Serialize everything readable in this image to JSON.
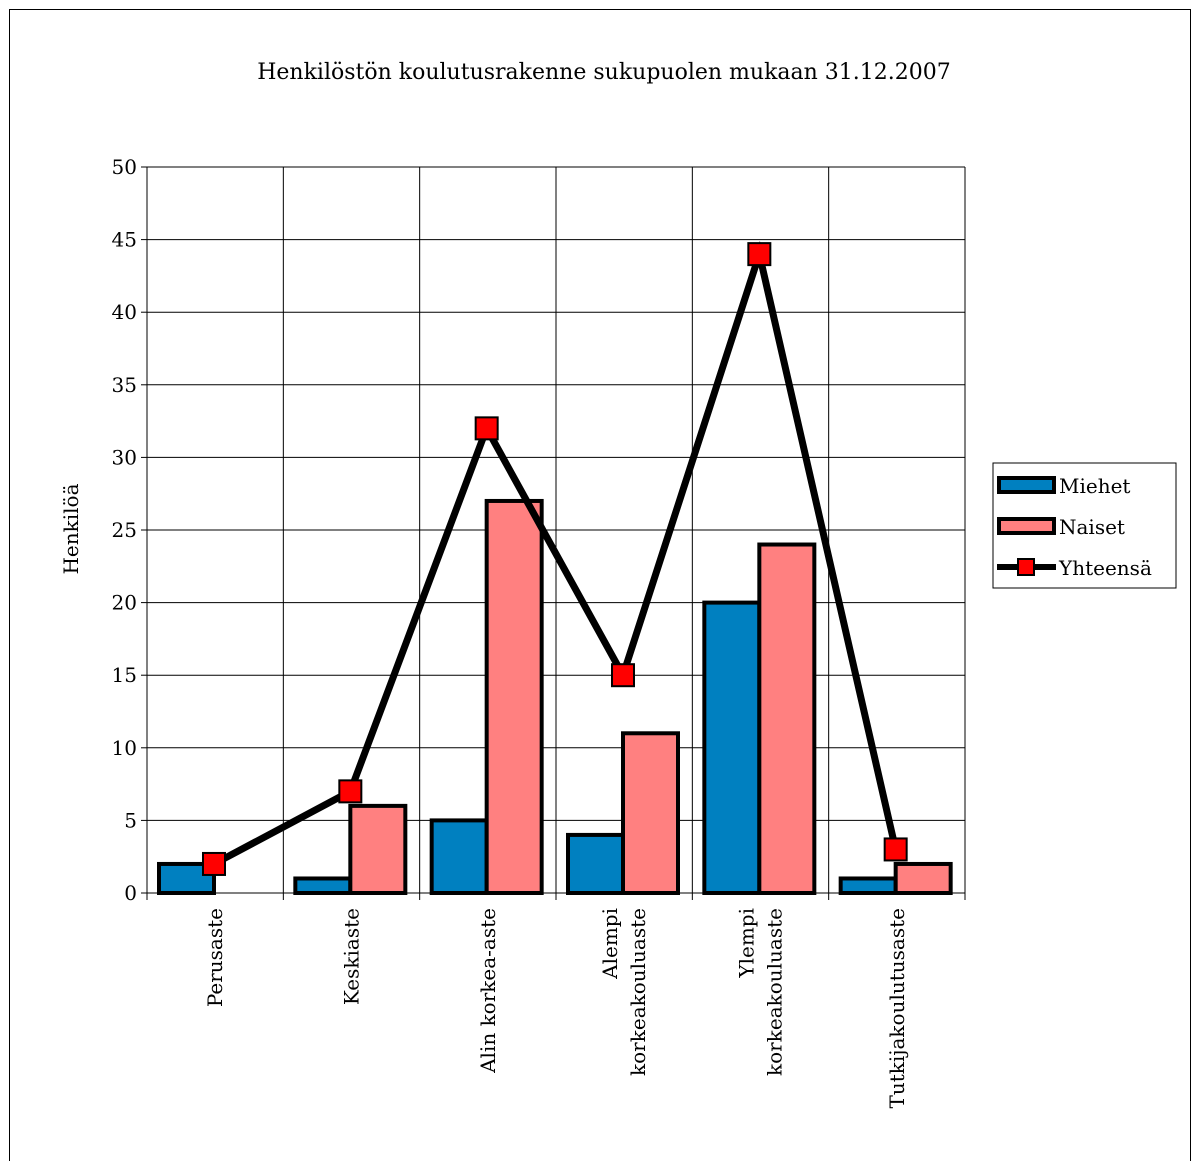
{
  "chart_data": {
    "type": "bar",
    "title": "Henkilöstön koulutusrakenne sukupuolen mukaan 31.12.2007",
    "xlabel": "",
    "ylabel": "Henkilöä",
    "ylim": [
      0,
      50
    ],
    "yticks": [
      0,
      5,
      10,
      15,
      20,
      25,
      30,
      35,
      40,
      45,
      50
    ],
    "grid": true,
    "legend_position": "right",
    "categories": [
      [
        "Perusaste"
      ],
      [
        "Keskiaste"
      ],
      [
        "Alin korkea-aste"
      ],
      [
        "Alempi",
        "korkeakouluaste"
      ],
      [
        "Ylempi",
        "korkeakouluaste"
      ],
      [
        "Tutkijakoulutusaste"
      ]
    ],
    "series": [
      {
        "name": "Miehet",
        "kind": "bar",
        "color": "#0080C0",
        "values": [
          2,
          1,
          5,
          4,
          20,
          1
        ]
      },
      {
        "name": "Naiset",
        "kind": "bar",
        "color": "#FF8080",
        "values": [
          0,
          6,
          27,
          11,
          24,
          2
        ]
      },
      {
        "name": "Yhteensä",
        "kind": "line",
        "color": "#000000",
        "marker_color": "#FF0000",
        "values": [
          2,
          7,
          32,
          15,
          44,
          3
        ]
      }
    ]
  }
}
